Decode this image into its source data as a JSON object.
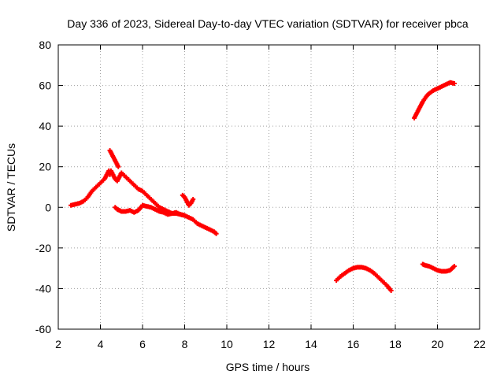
{
  "chart_data": {
    "type": "scatter",
    "title": "Day 336 of 2023, Sidereal Day-to-day VTEC variation (SDTVAR) for receiver pbca",
    "xlabel": "GPS time / hours",
    "ylabel": "SDTVAR / TECUs",
    "xlim": [
      2,
      22
    ],
    "ylim": [
      -60,
      80
    ],
    "x_ticks": [
      2,
      4,
      6,
      8,
      10,
      12,
      14,
      16,
      18,
      20,
      22
    ],
    "y_ticks": [
      -60,
      -40,
      -20,
      0,
      20,
      40,
      60,
      80
    ],
    "grid": true,
    "legend": "none",
    "marker": "plus",
    "series_color": "#ff0000",
    "series": [
      {
        "name": "arc-a",
        "x": [
          2.6,
          2.8,
          3.0,
          3.2,
          3.4,
          3.6,
          3.8,
          4.0,
          4.2,
          4.3,
          4.4,
          4.45
        ],
        "y": [
          1,
          1.5,
          2,
          3,
          5,
          8,
          10,
          12,
          14,
          16,
          18,
          16
        ]
      },
      {
        "name": "arc-b",
        "x": [
          4.45,
          4.55,
          4.65,
          4.75,
          4.85
        ],
        "y": [
          28,
          26,
          24,
          22,
          20
        ]
      },
      {
        "name": "arc-c",
        "x": [
          4.5,
          4.6,
          4.7,
          4.8,
          4.9,
          5.0,
          5.2,
          5.4,
          5.6,
          5.8,
          6.0,
          6.2,
          6.4,
          6.6,
          6.8,
          7.0,
          7.2,
          7.4,
          7.6,
          7.8,
          8.0,
          8.2,
          8.4,
          8.6,
          8.8,
          9.0,
          9.2,
          9.4,
          9.5
        ],
        "y": [
          18,
          16,
          14,
          13,
          15,
          17,
          15,
          13,
          11,
          9,
          8,
          6,
          4,
          2,
          0,
          -1,
          -2,
          -3,
          -3,
          -3.5,
          -4,
          -5,
          -6,
          -8,
          -9,
          -10,
          -11,
          -12,
          -13
        ]
      },
      {
        "name": "arc-d",
        "x": [
          4.7,
          4.8,
          4.9,
          5.0,
          5.2,
          5.4,
          5.6,
          5.8,
          6.0,
          6.2,
          6.4,
          6.6,
          6.8,
          7.0,
          7.2,
          7.4,
          7.6,
          7.8,
          8.0
        ],
        "y": [
          0,
          -1,
          -1.5,
          -2,
          -2,
          -1.5,
          -2.5,
          -1.5,
          1,
          0.5,
          0,
          -1,
          -2,
          -2.5,
          -3.5,
          -3,
          -2.5,
          -3.5,
          -4
        ]
      },
      {
        "name": "arc-e",
        "x": [
          7.9,
          8.0,
          8.1,
          8.2,
          8.3,
          8.4
        ],
        "y": [
          6,
          5,
          3,
          1,
          2,
          4
        ]
      },
      {
        "name": "arc-f",
        "x": [
          15.2,
          15.4,
          15.6,
          15.8,
          16.0,
          16.2,
          16.4,
          16.6,
          16.8,
          17.0,
          17.2,
          17.4,
          17.6,
          17.8
        ],
        "y": [
          -36,
          -34,
          -32.5,
          -31,
          -30,
          -29.5,
          -29.5,
          -30,
          -31,
          -32.5,
          -34.5,
          -36.5,
          -38.5,
          -41
        ]
      },
      {
        "name": "arc-g",
        "x": [
          18.9,
          19.0,
          19.1,
          19.2,
          19.3,
          19.4,
          19.5,
          19.6,
          19.8,
          20.0,
          20.2,
          20.4,
          20.6,
          20.8
        ],
        "y": [
          44,
          46,
          48,
          50,
          52,
          53.5,
          55,
          56,
          57.5,
          58.5,
          59.5,
          60.5,
          61.5,
          61
        ]
      },
      {
        "name": "arc-h",
        "x": [
          19.3,
          19.4,
          19.6,
          19.8,
          20.0,
          20.2,
          20.4,
          20.6,
          20.7,
          20.8
        ],
        "y": [
          -28,
          -28.5,
          -29,
          -30,
          -31,
          -31.5,
          -31.5,
          -31,
          -30,
          -29
        ]
      }
    ]
  }
}
